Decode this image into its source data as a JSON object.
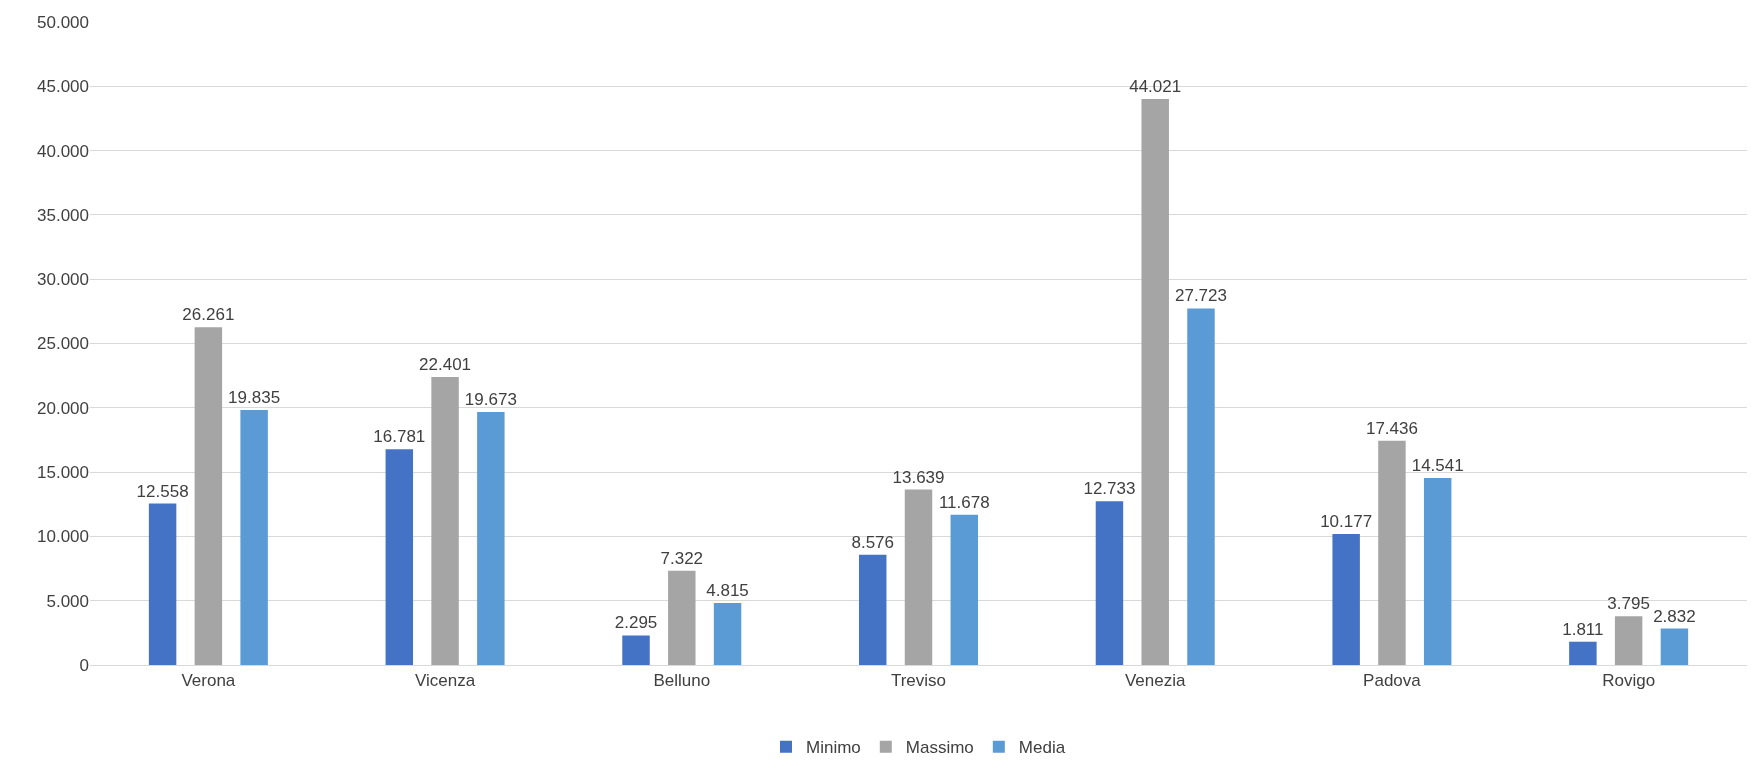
{
  "chart_data": {
    "type": "bar",
    "categories": [
      "Verona",
      "Vicenza",
      "Belluno",
      "Treviso",
      "Venezia",
      "Padova",
      "Rovigo"
    ],
    "series": [
      {
        "name": "Minimo",
        "color": "#4472c4",
        "values": [
          12558,
          16781,
          2295,
          8576,
          12733,
          10177,
          1811
        ],
        "value_labels": [
          "12.558",
          "16.781",
          "2.295",
          "8.576",
          "12.733",
          "10.177",
          "1.811"
        ]
      },
      {
        "name": "Massimo",
        "color": "#a5a5a5",
        "values": [
          26261,
          22401,
          7322,
          13639,
          44021,
          17436,
          3795
        ],
        "value_labels": [
          "26.261",
          "22.401",
          "7.322",
          "13.639",
          "44.021",
          "17.436",
          "3.795"
        ]
      },
      {
        "name": "Media",
        "color": "#5b9bd5",
        "values": [
          19835,
          19673,
          4815,
          11678,
          27723,
          14541,
          2832
        ],
        "value_labels": [
          "19.835",
          "19.673",
          "4.815",
          "11.678",
          "27.723",
          "14.541",
          "2.832"
        ]
      }
    ],
    "ylim": [
      0,
      50000
    ],
    "yticks": [
      {
        "value": 0,
        "label": "0"
      },
      {
        "value": 5000,
        "label": "5.000"
      },
      {
        "value": 10000,
        "label": "10.000"
      },
      {
        "value": 15000,
        "label": "15.000"
      },
      {
        "value": 20000,
        "label": "20.000"
      },
      {
        "value": 25000,
        "label": "25.000"
      },
      {
        "value": 30000,
        "label": "30.000"
      },
      {
        "value": 35000,
        "label": "35.000"
      },
      {
        "value": 40000,
        "label": "40.000"
      },
      {
        "value": 45000,
        "label": "45.000"
      },
      {
        "value": 50000,
        "label": "50.000"
      }
    ],
    "grid": "y",
    "legend": "bottom"
  }
}
